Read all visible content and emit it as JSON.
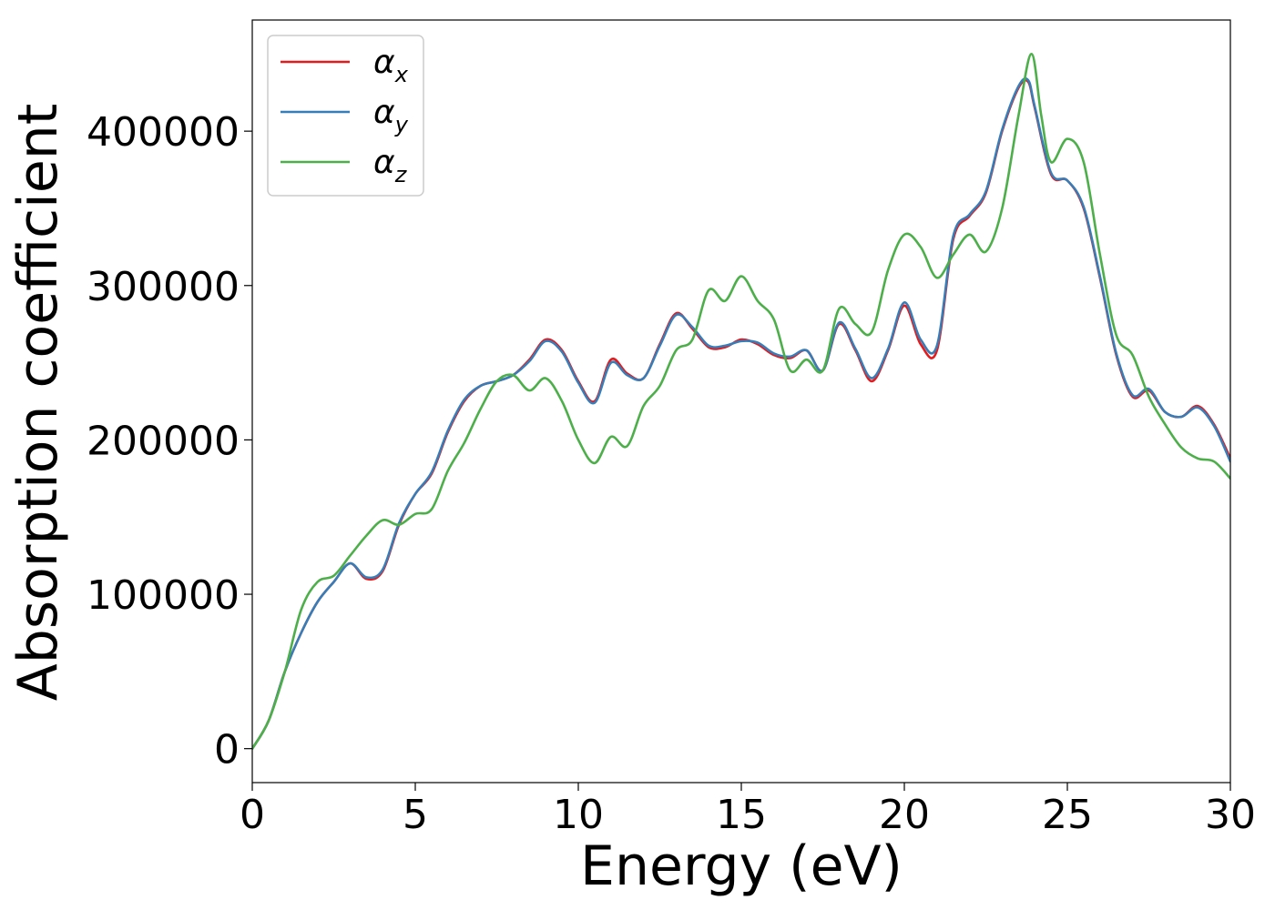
{
  "chart_data": {
    "type": "line",
    "title": "",
    "xlabel": "Energy (eV)",
    "ylabel": "Absorption coefficient",
    "xlim": [
      0,
      30
    ],
    "ylim": [
      -22000,
      472000
    ],
    "xticks": [
      0,
      5,
      10,
      15,
      20,
      25,
      30
    ],
    "xtick_labels": [
      "0",
      "5",
      "10",
      "15",
      "20",
      "25",
      "30"
    ],
    "yticks": [
      0,
      100000,
      200000,
      300000,
      400000
    ],
    "ytick_labels": [
      "0",
      "100000",
      "200000",
      "300000",
      "400000"
    ],
    "grid": false,
    "legend_position": "top-left",
    "series": [
      {
        "name": "αx",
        "legend_base": "α",
        "legend_sub": "x",
        "color": "#e41a1c",
        "x": [
          0,
          0.5,
          1,
          1.5,
          2,
          2.5,
          3,
          3.5,
          4,
          4.5,
          5,
          5.5,
          6,
          6.5,
          7,
          7.5,
          8,
          8.5,
          9,
          9.5,
          10,
          10.5,
          11,
          11.5,
          12,
          12.5,
          13,
          13.5,
          14,
          14.5,
          15,
          15.5,
          16,
          16.5,
          17,
          17.5,
          18,
          18.5,
          19,
          19.5,
          20,
          20.5,
          21,
          21.5,
          22,
          22.5,
          23,
          23.5,
          23.8,
          24,
          24.5,
          25,
          25.5,
          26,
          26.5,
          27,
          27.5,
          28,
          28.5,
          29,
          29.5,
          30
        ],
        "y": [
          0,
          18000,
          50000,
          75000,
          95000,
          108000,
          120000,
          110000,
          115000,
          145000,
          165000,
          178000,
          205000,
          225000,
          235000,
          238000,
          242000,
          252000,
          265000,
          258000,
          238000,
          225000,
          252000,
          243000,
          240000,
          262000,
          282000,
          272000,
          260000,
          260000,
          265000,
          262000,
          255000,
          253000,
          258000,
          245000,
          275000,
          258000,
          238000,
          258000,
          287000,
          262000,
          258000,
          330000,
          345000,
          360000,
          400000,
          428000,
          432000,
          415000,
          372000,
          368000,
          350000,
          305000,
          255000,
          228000,
          232000,
          218000,
          215000,
          222000,
          210000,
          188000
        ]
      },
      {
        "name": "αy",
        "legend_base": "α",
        "legend_sub": "y",
        "color": "#377eb8",
        "x": [
          0,
          0.5,
          1,
          1.5,
          2,
          2.5,
          3,
          3.5,
          4,
          4.5,
          5,
          5.5,
          6,
          6.5,
          7,
          7.5,
          8,
          8.5,
          9,
          9.5,
          10,
          10.5,
          11,
          11.5,
          12,
          12.5,
          13,
          13.5,
          14,
          14.5,
          15,
          15.5,
          16,
          16.5,
          17,
          17.5,
          18,
          18.5,
          19,
          19.5,
          20,
          20.5,
          21,
          21.5,
          22,
          22.5,
          23,
          23.5,
          23.8,
          24,
          24.5,
          25,
          25.5,
          26,
          26.5,
          27,
          27.5,
          28,
          28.5,
          29,
          29.5,
          30
        ],
        "y": [
          0,
          18000,
          50000,
          75000,
          95000,
          108000,
          120000,
          111000,
          116000,
          146000,
          165000,
          179000,
          206000,
          226000,
          235000,
          238000,
          242000,
          251000,
          264000,
          257000,
          237000,
          224000,
          250000,
          242000,
          240000,
          261000,
          281000,
          273000,
          261000,
          261000,
          264000,
          263000,
          256000,
          254000,
          258000,
          245000,
          276000,
          259000,
          240000,
          259000,
          289000,
          265000,
          261000,
          332000,
          346000,
          361000,
          401000,
          429000,
          433000,
          416000,
          373000,
          368000,
          351000,
          306000,
          256000,
          229000,
          233000,
          218000,
          215000,
          221000,
          209000,
          186000
        ]
      },
      {
        "name": "αz",
        "legend_base": "α",
        "legend_sub": "z",
        "color": "#4daf4a",
        "x": [
          0,
          0.5,
          1,
          1.5,
          2,
          2.5,
          3,
          3.5,
          4,
          4.5,
          5,
          5.5,
          6,
          6.5,
          7,
          7.5,
          8,
          8.5,
          9,
          9.5,
          10,
          10.5,
          11,
          11.5,
          12,
          12.5,
          13,
          13.5,
          14,
          14.5,
          15,
          15.5,
          16,
          16.5,
          17,
          17.5,
          18,
          18.5,
          19,
          19.5,
          20,
          20.5,
          21,
          21.5,
          22,
          22.5,
          23,
          23.5,
          23.9,
          24.2,
          24.5,
          25,
          25.5,
          26,
          26.5,
          27,
          27.5,
          28,
          28.5,
          29,
          29.5,
          30
        ],
        "y": [
          0,
          18000,
          50000,
          90000,
          108000,
          112000,
          125000,
          138000,
          148000,
          145000,
          152000,
          155000,
          180000,
          198000,
          220000,
          238000,
          242000,
          232000,
          240000,
          225000,
          200000,
          185000,
          202000,
          196000,
          222000,
          235000,
          258000,
          265000,
          297000,
          290000,
          306000,
          290000,
          278000,
          245000,
          252000,
          245000,
          285000,
          275000,
          270000,
          310000,
          333000,
          325000,
          305000,
          320000,
          333000,
          322000,
          350000,
          410000,
          450000,
          410000,
          380000,
          395000,
          380000,
          320000,
          268000,
          255000,
          228000,
          210000,
          195000,
          188000,
          186000,
          175000
        ]
      }
    ]
  }
}
